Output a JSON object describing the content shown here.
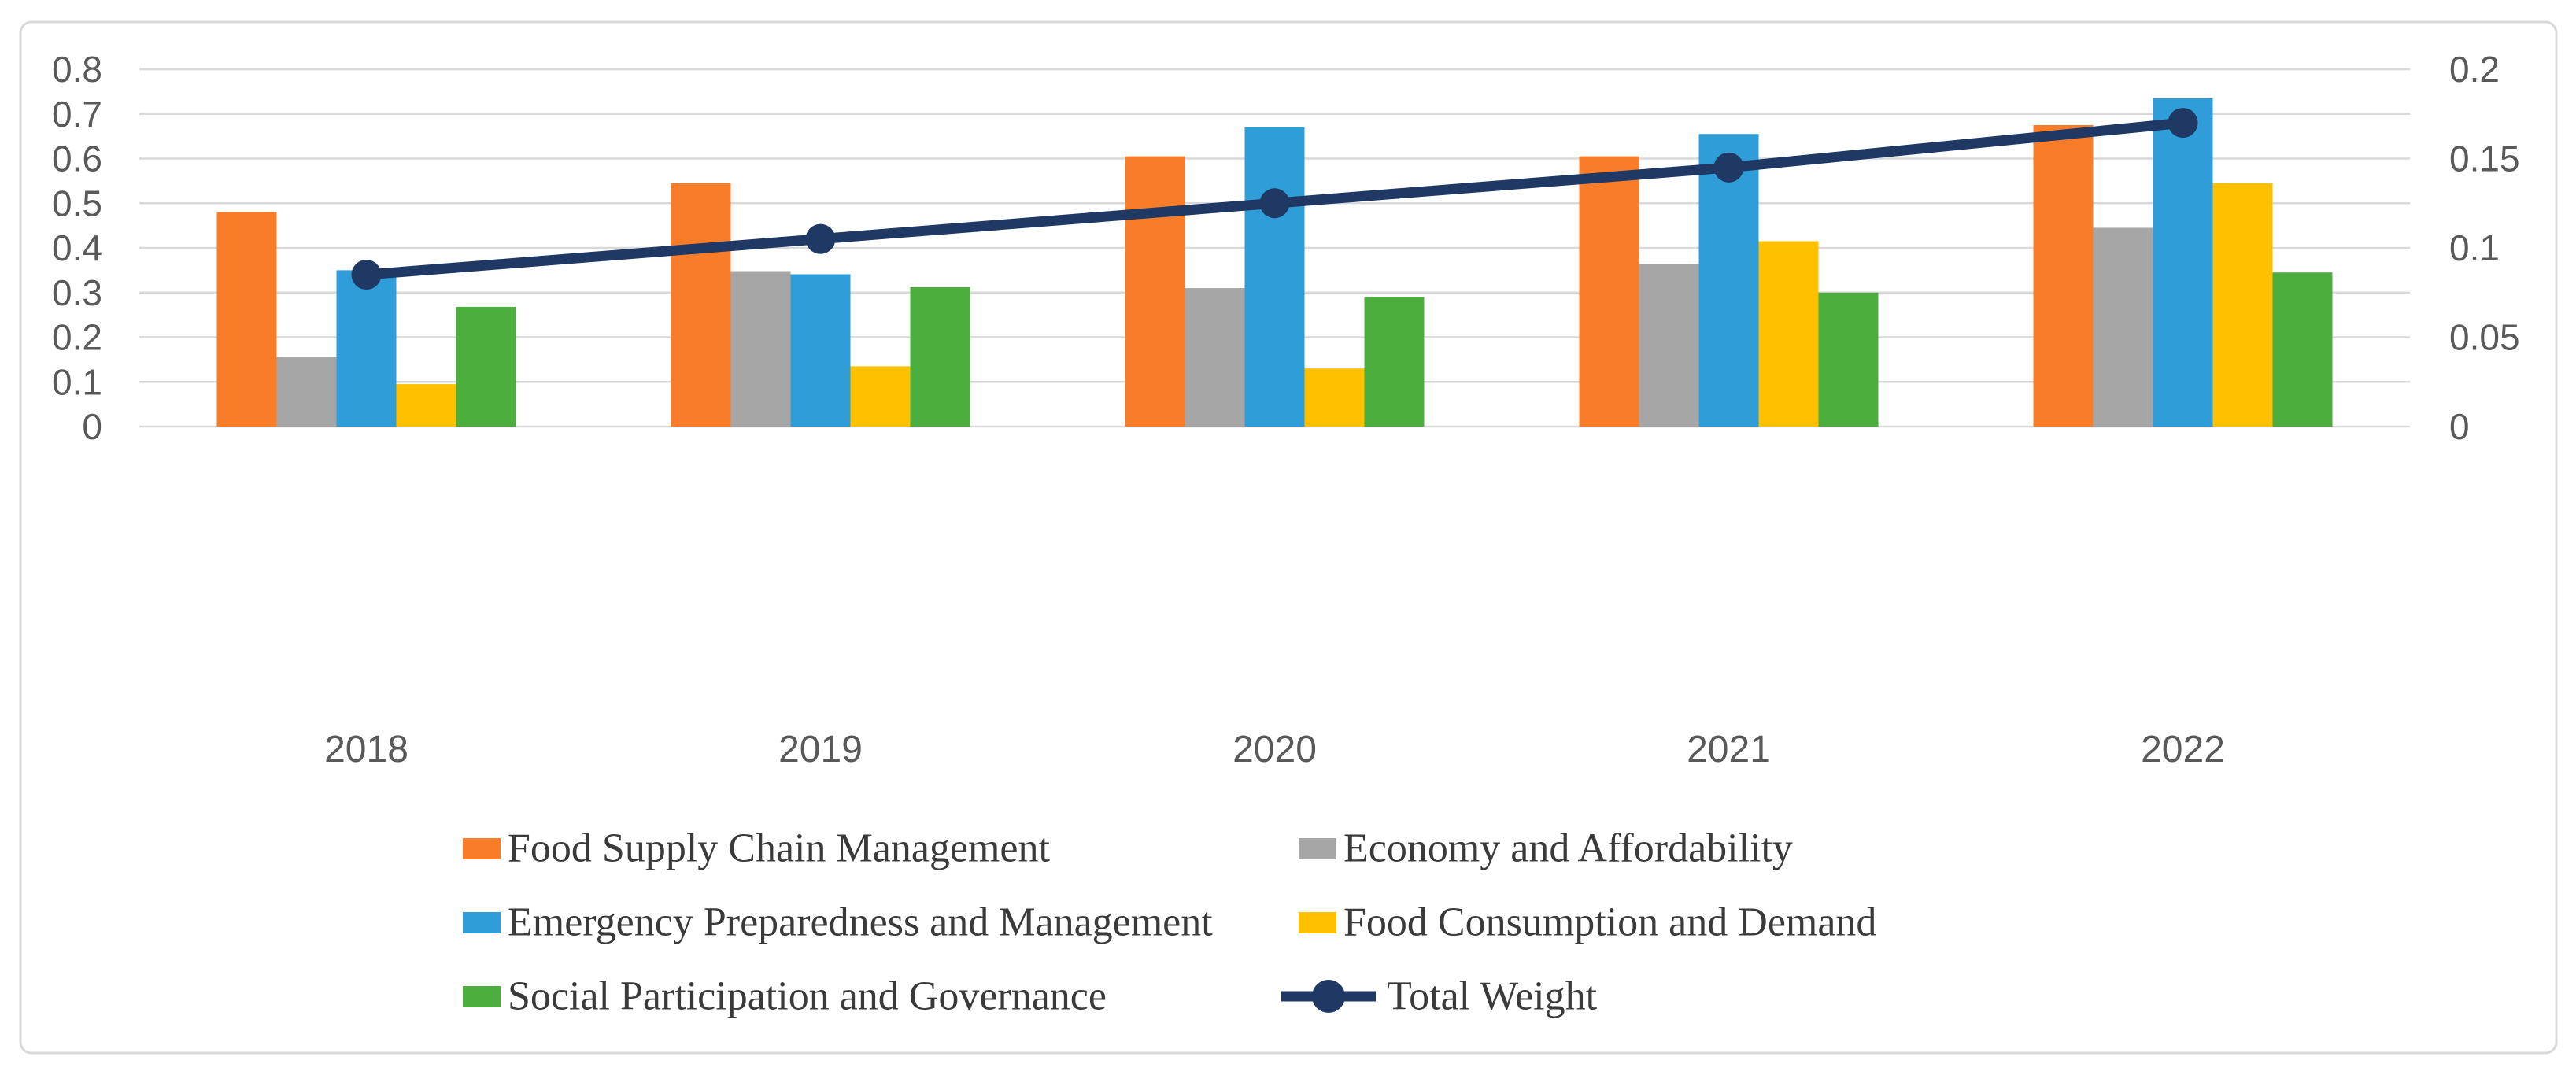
{
  "figure": {
    "background": "#ffffff",
    "border_color": "#d9d9d9",
    "gridline_color": "#d9d9d9",
    "axis_text_color": "#595959",
    "legend_text_color": "#3a3a3a"
  },
  "chart_data": {
    "type": "bar",
    "subtype": "clustered-bar-with-line-overlay",
    "categories": [
      "2018",
      "2019",
      "2020",
      "2021",
      "2022"
    ],
    "series": [
      {
        "name": "Food Supply Chain Management",
        "color": "#f97d28",
        "axis": "left",
        "values": [
          0.48,
          0.545,
          0.605,
          0.605,
          0.675
        ]
      },
      {
        "name": "Economy and Affordability",
        "color": "#a6a6a6",
        "axis": "left",
        "values": [
          0.155,
          0.348,
          0.31,
          0.364,
          0.445
        ]
      },
      {
        "name": "Emergency Preparedness and Management",
        "color": "#2e9dd8",
        "axis": "left",
        "values": [
          0.35,
          0.341,
          0.67,
          0.655,
          0.735
        ]
      },
      {
        "name": "Food Consumption and Demand",
        "color": "#ffc000",
        "axis": "left",
        "values": [
          0.095,
          0.135,
          0.13,
          0.415,
          0.545
        ]
      },
      {
        "name": "Social Participation and Governance",
        "color": "#4cae3d",
        "axis": "left",
        "values": [
          0.268,
          0.312,
          0.29,
          0.3,
          0.345
        ]
      }
    ],
    "line_series": {
      "name": "Total Weight",
      "color": "#1f3864",
      "axis": "right",
      "values": [
        0.085,
        0.105,
        0.125,
        0.145,
        0.17
      ]
    },
    "left_axis": {
      "min": 0,
      "max": 0.8,
      "tick_labels": [
        "0",
        "0.1",
        "0.2",
        "0.3",
        "0.4",
        "0.5",
        "0.6",
        "0.7",
        "0.8"
      ]
    },
    "right_axis": {
      "min": 0,
      "max": 0.2,
      "tick_labels": [
        "0",
        "0.05",
        "0.1",
        "0.15",
        "0.2"
      ]
    },
    "grid": true,
    "legend_position": "bottom",
    "legend_layout": [
      {
        "series": 0,
        "row": 0,
        "col": 0,
        "marker": "rect"
      },
      {
        "series": 1,
        "row": 0,
        "col": 1,
        "marker": "rect"
      },
      {
        "series": 2,
        "row": 1,
        "col": 0,
        "marker": "rect"
      },
      {
        "series": 3,
        "row": 1,
        "col": 1,
        "marker": "rect"
      },
      {
        "series": 4,
        "row": 2,
        "col": 0,
        "marker": "rect"
      },
      {
        "series": "line",
        "row": 2,
        "col": 1,
        "marker": "line-dot"
      }
    ]
  }
}
